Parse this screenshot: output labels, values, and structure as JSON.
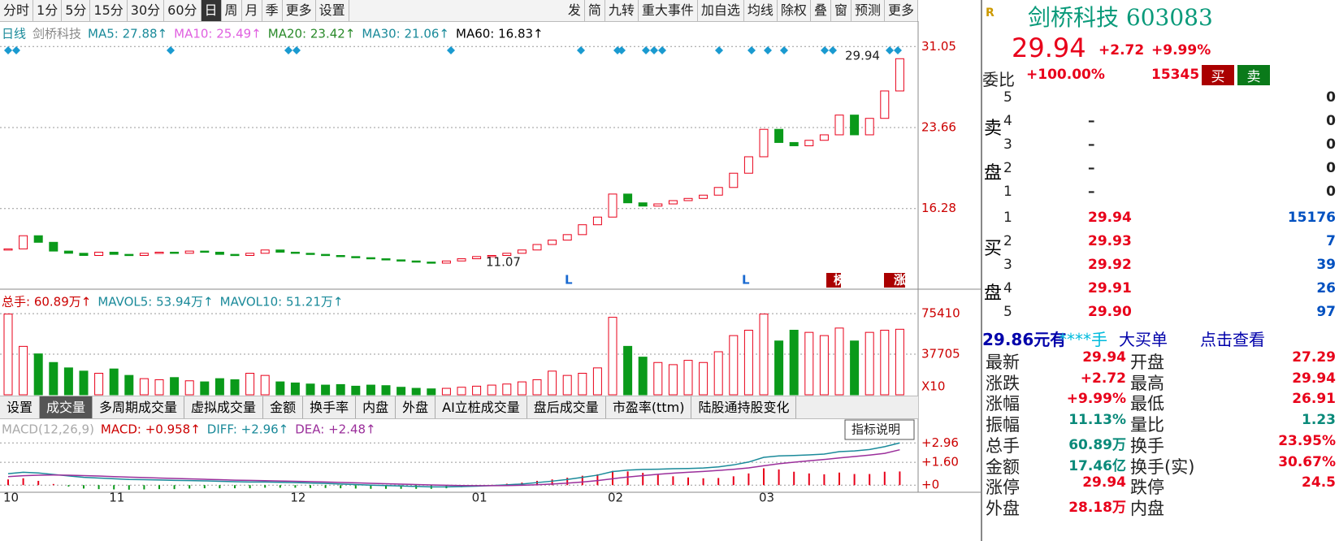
{
  "toolbar": {
    "left": [
      "分时",
      "1分",
      "5分",
      "15分",
      "30分",
      "60分",
      "日",
      "周",
      "月",
      "季",
      "更多",
      "设置"
    ],
    "right": [
      "发",
      "简",
      "九转",
      "重大事件",
      "加自选",
      "均线",
      "除权",
      "叠",
      "窗",
      "预测",
      "更多"
    ]
  },
  "chart_data": [
    {
      "type": "candlestick",
      "legend": [
        "日线",
        "剑桥科技",
        "MA5: 27.88↑",
        "MA10: 25.49↑",
        "MA20: 23.42↑",
        "MA30: 21.06↑",
        "MA60: 16.83↑"
      ],
      "categories": [
        "10",
        null,
        null,
        null,
        null,
        null,
        null,
        "11",
        null,
        null,
        null,
        null,
        null,
        null,
        null,
        null,
        null,
        null,
        null,
        "12",
        null,
        null,
        null,
        null,
        null,
        null,
        null,
        null,
        null,
        null,
        null,
        "01",
        null,
        null,
        null,
        null,
        null,
        null,
        null,
        null,
        "02",
        null,
        null,
        null,
        null,
        null,
        null,
        null,
        null,
        null,
        "03",
        null,
        null,
        null,
        null,
        null,
        null,
        null,
        null,
        null
      ],
      "values": [
        12.6,
        13.8,
        13.2,
        12.4,
        12.2,
        12.0,
        12.3,
        12.1,
        12.0,
        12.2,
        12.3,
        12.2,
        12.4,
        12.3,
        12.1,
        12.0,
        12.2,
        12.5,
        12.3,
        12.2,
        12.1,
        12.0,
        11.9,
        11.8,
        11.7,
        11.6,
        11.5,
        11.4,
        11.3,
        11.5,
        11.7,
        11.9,
        12.0,
        12.2,
        12.5,
        13.0,
        13.4,
        13.9,
        14.8,
        15.5,
        17.6,
        16.8,
        16.5,
        16.7,
        17.0,
        17.2,
        17.5,
        18.2,
        19.5,
        21.0,
        23.5,
        22.3,
        22.0,
        22.5,
        23.0,
        24.8,
        23.0,
        24.5,
        27.0,
        29.94
      ],
      "up_color": "#e8001a",
      "down_color": "#0a9a1a",
      "ylim": [
        9.0,
        32.7
      ],
      "yticks": [
        31.05,
        23.66,
        16.28
      ],
      "annotations": [
        "29.94",
        "11.07",
        "L",
        "L",
        "榜",
        "涨"
      ]
    },
    {
      "type": "bar",
      "legend": [
        "总手: 60.89万↑",
        "MAVOL5: 53.94万↑",
        "MAVOL10: 51.21万↑"
      ],
      "multiplier": "X10",
      "values": [
        75000,
        45000,
        38000,
        30000,
        25000,
        22000,
        20000,
        24000,
        18000,
        15000,
        14000,
        16000,
        13000,
        12000,
        15000,
        14000,
        20000,
        18000,
        12000,
        11000,
        10000,
        9000,
        9500,
        8000,
        9000,
        8500,
        7000,
        6000,
        5500,
        6000,
        7000,
        8000,
        9000,
        10000,
        12000,
        14000,
        22000,
        18000,
        20000,
        25000,
        72000,
        45000,
        35000,
        30000,
        28000,
        32000,
        30000,
        40000,
        55000,
        60000,
        75000,
        50000,
        60000,
        58000,
        55000,
        62000,
        50000,
        58000,
        60000,
        60890
      ],
      "ylim": [
        0,
        80000
      ],
      "yticks": [
        75410,
        37705
      ]
    },
    {
      "type": "macd",
      "legend": [
        "MACD(12,26,9)",
        "MACD: +0.958↑",
        "DIFF: +2.96↑",
        "DEA: +2.48↑"
      ],
      "button": "指标说明",
      "values": [
        0.4,
        0.48,
        0.3,
        0.08,
        -0.1,
        -0.24,
        -0.28,
        -0.3,
        -0.32,
        -0.3,
        -0.28,
        -0.28,
        -0.24,
        -0.22,
        -0.22,
        -0.22,
        -0.22,
        -0.18,
        -0.18,
        -0.18,
        -0.2,
        -0.2,
        -0.22,
        -0.24,
        -0.26,
        -0.26,
        -0.26,
        -0.26,
        -0.26,
        -0.22,
        -0.14,
        -0.06,
        0.02,
        0.1,
        0.18,
        0.3,
        0.4,
        0.52,
        0.66,
        0.76,
        1.0,
        0.96,
        0.86,
        0.72,
        0.62,
        0.54,
        0.48,
        0.5,
        0.62,
        0.82,
        1.18,
        1.1,
        0.94,
        0.82,
        0.76,
        0.88,
        0.78,
        0.78,
        0.94,
        0.958
      ],
      "series": [
        {
          "color": "#1a8a9a",
          "values": [
            0.8,
            0.9,
            0.85,
            0.75,
            0.65,
            0.55,
            0.5,
            0.45,
            0.4,
            0.38,
            0.36,
            0.33,
            0.32,
            0.3,
            0.27,
            0.24,
            0.22,
            0.22,
            0.2,
            0.18,
            0.15,
            0.12,
            0.08,
            0.04,
            0.0,
            -0.03,
            -0.06,
            -0.09,
            -0.12,
            -0.12,
            -0.1,
            -0.07,
            -0.03,
            0.02,
            0.08,
            0.18,
            0.28,
            0.4,
            0.55,
            0.7,
            0.95,
            1.05,
            1.1,
            1.12,
            1.15,
            1.17,
            1.2,
            1.28,
            1.42,
            1.62,
            1.95,
            2.05,
            2.08,
            2.12,
            2.18,
            2.35,
            2.4,
            2.5,
            2.7,
            2.96
          ]
        },
        {
          "color": "#9b2f9b",
          "values": [
            0.6,
            0.66,
            0.7,
            0.71,
            0.7,
            0.67,
            0.64,
            0.6,
            0.56,
            0.53,
            0.5,
            0.47,
            0.44,
            0.41,
            0.38,
            0.35,
            0.33,
            0.31,
            0.29,
            0.27,
            0.25,
            0.22,
            0.19,
            0.16,
            0.13,
            0.1,
            0.07,
            0.04,
            0.01,
            -0.01,
            -0.03,
            -0.04,
            -0.04,
            -0.03,
            -0.01,
            0.03,
            0.08,
            0.14,
            0.22,
            0.32,
            0.45,
            0.57,
            0.67,
            0.76,
            0.84,
            0.9,
            0.96,
            1.03,
            1.11,
            1.21,
            1.36,
            1.5,
            1.61,
            1.71,
            1.8,
            1.91,
            2.01,
            2.11,
            2.23,
            2.48
          ]
        }
      ],
      "ylim": [
        -0.5,
        4.4
      ],
      "yticks": [
        {
          "value": 2.96,
          "label": "+2.96"
        },
        {
          "value": 1.6,
          "label": "+1.60"
        },
        {
          "value": 0,
          "label": "+0"
        }
      ]
    }
  ],
  "tabs": [
    "设置",
    "成交量",
    "多周期成交量",
    "虚拟成交量",
    "金额",
    "换手率",
    "内盘",
    "外盘",
    "AI立桩成交量",
    "盘后成交量",
    "市盈率(ttm)",
    "陆股通持股变化"
  ],
  "quote": {
    "badge": "R",
    "name": "剑桥科技 603083",
    "price": "29.94",
    "change": "+2.72",
    "pct": "+9.99%",
    "weibi": [
      "委比",
      "+100.00%",
      "15345",
      "买",
      "卖"
    ],
    "sell": {
      "label": [
        "卖",
        "盘"
      ],
      "rows": [
        [
          "5",
          "0"
        ],
        [
          "4",
          "–",
          "0"
        ],
        [
          "3",
          "–",
          "0"
        ],
        [
          "2",
          "–",
          "0"
        ],
        [
          "1",
          "–",
          "0"
        ]
      ]
    },
    "buy": {
      "label": [
        "买",
        "盘"
      ],
      "rows": [
        [
          "1",
          "29.94",
          "15176"
        ],
        [
          "2",
          "29.93",
          "7"
        ],
        [
          "3",
          "29.92",
          "39"
        ],
        [
          "4",
          "29.91",
          "26"
        ],
        [
          "5",
          "29.90",
          "97"
        ]
      ]
    },
    "bigorder": [
      "29.86元有",
      "****手",
      "大买单",
      "点击查看"
    ],
    "stats": [
      [
        "最新",
        "29.94",
        "开盘",
        "27.29"
      ],
      [
        "涨跌",
        "+2.72",
        "最高",
        "29.94"
      ],
      [
        "涨幅",
        "+9.99%",
        "最低",
        "26.91"
      ],
      [
        "振幅",
        "11.13%",
        "量比",
        "1.23"
      ],
      [
        "总手",
        "60.89万",
        "换手",
        "23.95%"
      ],
      [
        "金额",
        "17.46亿",
        "换手(实)",
        "30.67%"
      ],
      [
        "涨停",
        "29.94",
        "跌停",
        "24.5"
      ],
      [
        "外盘",
        "28.18万",
        "内盘"
      ]
    ]
  }
}
